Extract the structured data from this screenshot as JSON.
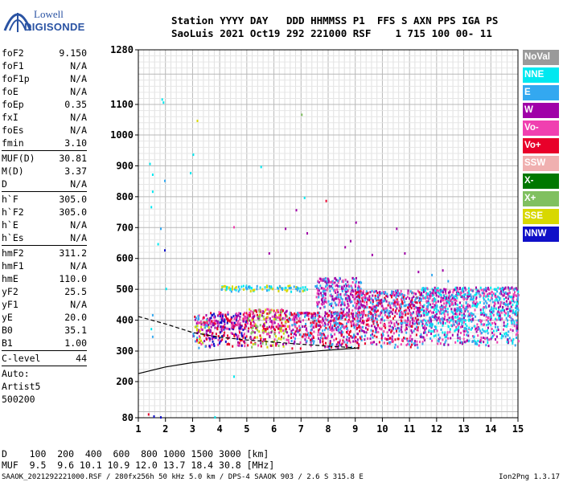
{
  "logo": {
    "line1": "Lowell",
    "line2": "DIGISONDE"
  },
  "header": {
    "line1": "Station YYYY DAY   DDD HHMMSS P1  FFS S AXN PPS IGA PS",
    "line2": "SaoLuis 2021 Oct19 292 221000 RSF    1 715 100 00- 11"
  },
  "params": {
    "group1": [
      {
        "label": "foF2",
        "value": "9.150"
      },
      {
        "label": "foF1",
        "value": "N/A"
      },
      {
        "label": "foF1p",
        "value": "N/A"
      },
      {
        "label": "foE",
        "value": "N/A"
      },
      {
        "label": "foEp",
        "value": "0.35"
      },
      {
        "label": "fxI",
        "value": "N/A"
      },
      {
        "label": "foEs",
        "value": "N/A"
      },
      {
        "label": "fmin",
        "value": "3.10"
      }
    ],
    "group2": [
      {
        "label": "MUF(D)",
        "value": "30.81"
      },
      {
        "label": "M(D)",
        "value": "3.37"
      },
      {
        "label": "D",
        "value": "N/A"
      }
    ],
    "group3": [
      {
        "label": "h`F",
        "value": "305.0"
      },
      {
        "label": "h`F2",
        "value": "305.0"
      },
      {
        "label": "h`E",
        "value": "N/A"
      },
      {
        "label": "h`Es",
        "value": "N/A"
      }
    ],
    "group4": [
      {
        "label": "hmF2",
        "value": "311.2"
      },
      {
        "label": "hmF1",
        "value": "N/A"
      },
      {
        "label": "hmE",
        "value": "110.0"
      },
      {
        "label": "yF2",
        "value": "25.5"
      },
      {
        "label": "yF1",
        "value": "N/A"
      },
      {
        "label": "yE",
        "value": "20.0"
      },
      {
        "label": "B0",
        "value": "35.1"
      },
      {
        "label": "B1",
        "value": "1.00"
      }
    ],
    "clevel": {
      "label": "C-level",
      "value": "44"
    },
    "auto": [
      "Auto:",
      "Artist5",
      "500200"
    ]
  },
  "legend": [
    {
      "label": "NoVal",
      "color": "#9a9a9a"
    },
    {
      "label": "NNE",
      "color": "#00e8f0"
    },
    {
      "label": "E",
      "color": "#33a8f0"
    },
    {
      "label": "W",
      "color": "#a000a8"
    },
    {
      "label": "Vo-",
      "color": "#f040b0"
    },
    {
      "label": "Vo+",
      "color": "#e8002a"
    },
    {
      "label": "SSW",
      "color": "#f0b0b0"
    },
    {
      "label": "X-",
      "color": "#007800"
    },
    {
      "label": "X+",
      "color": "#80c060"
    },
    {
      "label": "SSE",
      "color": "#d8d800"
    },
    {
      "label": "NNW",
      "color": "#1010c8"
    }
  ],
  "bottom": {
    "d_row": "D    100  200  400  600  800 1000 1500 3000 [km]",
    "muf_row": "MUF  9.5  9.6 10.1 10.9 12.0 13.7 18.4 30.8 [MHz]"
  },
  "footer": "SAAOK_2021292221000.RSF / 280fx256h 50 kHz 5.0 km / DPS-4 SAAOK 903 / 2.6 S 315.8 E",
  "version": "Ion2Png 1.3.17",
  "chart_data": {
    "type": "scatter",
    "x_ticks": [
      "1",
      "2",
      "3",
      "4",
      "5",
      "6",
      "7",
      "8",
      "9",
      "10",
      "11",
      "12",
      "13",
      "14",
      "15"
    ],
    "y_ticks": [
      "80",
      "200",
      "300",
      "400",
      "500",
      "600",
      "700",
      "800",
      "900",
      "1000",
      "1100",
      "1280"
    ],
    "xlim": [
      1,
      15
    ],
    "ylim": [
      80,
      1280
    ],
    "grid": true,
    "legend_position": "right",
    "profile_curve": {
      "f": [
        1.0,
        2.0,
        3.0,
        4.0,
        5.0,
        6.0,
        7.0,
        8.0,
        9.0,
        9.15
      ],
      "h": [
        226,
        248,
        262,
        272,
        280,
        288,
        296,
        303,
        309,
        311
      ]
    },
    "dashed_curve": {
      "f": [
        1.0,
        2.0,
        3.0,
        4.0,
        5.0,
        6.0,
        7.0,
        8.0,
        9.0
      ],
      "h": [
        412,
        388,
        360,
        345,
        336,
        329,
        322,
        316,
        311
      ]
    },
    "echo_regions": [
      {
        "f0": 3.0,
        "f1": 3.6,
        "h0": 310,
        "h1": 420,
        "colors": [
          "#e8002a",
          "#f040b0",
          "#a000a8",
          "#33a8f0",
          "#d8d800"
        ]
      },
      {
        "f0": 3.6,
        "f1": 5.0,
        "h0": 315,
        "h1": 430,
        "colors": [
          "#1010c8",
          "#a000a8",
          "#e8002a",
          "#f040b0"
        ]
      },
      {
        "f0": 5.0,
        "f1": 6.5,
        "h0": 315,
        "h1": 440,
        "colors": [
          "#e8002a",
          "#f040b0",
          "#a000a8",
          "#d8d800",
          "#80c060"
        ]
      },
      {
        "f0": 6.5,
        "f1": 9.0,
        "h0": 310,
        "h1": 430,
        "colors": [
          "#e8002a",
          "#f040b0",
          "#a000a8",
          "#33a8f0"
        ]
      },
      {
        "f0": 7.5,
        "f1": 9.2,
        "h0": 430,
        "h1": 540,
        "colors": [
          "#a000a8",
          "#f040b0",
          "#33a8f0"
        ]
      },
      {
        "f0": 9.0,
        "f1": 11.4,
        "h0": 310,
        "h1": 500,
        "colors": [
          "#a000a8",
          "#f040b0",
          "#e8002a",
          "#33a8f0"
        ]
      },
      {
        "f0": 11.4,
        "f1": 15.0,
        "h0": 320,
        "h1": 510,
        "colors": [
          "#00e8f0",
          "#33a8f0",
          "#a000a8",
          "#f040b0"
        ]
      },
      {
        "f0": 4.0,
        "f1": 7.2,
        "h0": 495,
        "h1": 515,
        "colors": [
          "#33a8f0",
          "#d8d800",
          "#00e8f0"
        ]
      }
    ],
    "sparse_points": [
      {
        "f": 1.4,
        "h": 910,
        "c": "#00e8f0"
      },
      {
        "f": 1.5,
        "h": 875,
        "c": "#00e8f0"
      },
      {
        "f": 1.5,
        "h": 820,
        "c": "#00e8f0"
      },
      {
        "f": 1.45,
        "h": 770,
        "c": "#00e8f0"
      },
      {
        "f": 1.85,
        "h": 1120,
        "c": "#00e8f0"
      },
      {
        "f": 1.9,
        "h": 1110,
        "c": "#00e8f0"
      },
      {
        "f": 1.95,
        "h": 855,
        "c": "#33a8f0"
      },
      {
        "f": 2.0,
        "h": 505,
        "c": "#00e8f0"
      },
      {
        "f": 1.95,
        "h": 630,
        "c": "#1010c8"
      },
      {
        "f": 1.7,
        "h": 650,
        "c": "#00e8f0"
      },
      {
        "f": 1.8,
        "h": 700,
        "c": "#33a8f0"
      },
      {
        "f": 1.5,
        "h": 420,
        "c": "#33a8f0"
      },
      {
        "f": 1.45,
        "h": 375,
        "c": "#00e8f0"
      },
      {
        "f": 1.5,
        "h": 350,
        "c": "#33a8f0"
      },
      {
        "f": 1.35,
        "h": 95,
        "c": "#e8002a"
      },
      {
        "f": 1.55,
        "h": 88,
        "c": "#1010c8"
      },
      {
        "f": 1.8,
        "h": 85,
        "c": "#1010c8"
      },
      {
        "f": 2.9,
        "h": 880,
        "c": "#00e8f0"
      },
      {
        "f": 3.0,
        "h": 940,
        "c": "#00e8f0"
      },
      {
        "f": 3.15,
        "h": 1050,
        "c": "#d8d800"
      },
      {
        "f": 4.5,
        "h": 705,
        "c": "#f040b0"
      },
      {
        "f": 5.5,
        "h": 900,
        "c": "#00e8f0"
      },
      {
        "f": 5.8,
        "h": 620,
        "c": "#a000a8"
      },
      {
        "f": 6.4,
        "h": 700,
        "c": "#a000a8"
      },
      {
        "f": 6.8,
        "h": 760,
        "c": "#a000a8"
      },
      {
        "f": 7.1,
        "h": 800,
        "c": "#00e8f0"
      },
      {
        "f": 7.0,
        "h": 1070,
        "c": "#80c060"
      },
      {
        "f": 7.2,
        "h": 685,
        "c": "#a000a8"
      },
      {
        "f": 7.9,
        "h": 790,
        "c": "#e8002a"
      },
      {
        "f": 8.6,
        "h": 640,
        "c": "#a000a8"
      },
      {
        "f": 8.8,
        "h": 660,
        "c": "#a000a8"
      },
      {
        "f": 9.0,
        "h": 720,
        "c": "#a000a8"
      },
      {
        "f": 9.6,
        "h": 615,
        "c": "#a000a8"
      },
      {
        "f": 10.5,
        "h": 700,
        "c": "#a000a8"
      },
      {
        "f": 10.8,
        "h": 620,
        "c": "#a000a8"
      },
      {
        "f": 11.3,
        "h": 560,
        "c": "#a000a8"
      },
      {
        "f": 11.8,
        "h": 550,
        "c": "#33a8f0"
      },
      {
        "f": 12.4,
        "h": 530,
        "c": "#33a8f0"
      },
      {
        "f": 12.2,
        "h": 565,
        "c": "#a000a8"
      },
      {
        "f": 3.8,
        "h": 85,
        "c": "#00e8f0"
      },
      {
        "f": 4.5,
        "h": 220,
        "c": "#00e8f0"
      }
    ]
  }
}
